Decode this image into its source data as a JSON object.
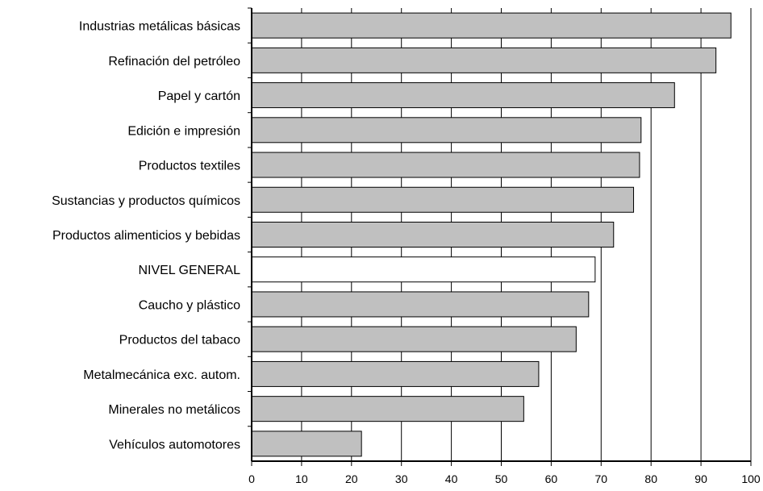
{
  "chart_data": {
    "type": "bar",
    "orientation": "horizontal",
    "title": "",
    "xlabel": "",
    "ylabel": "",
    "xlim": [
      0,
      100
    ],
    "xticks": [
      0,
      10,
      20,
      30,
      40,
      50,
      60,
      70,
      80,
      90,
      100
    ],
    "grid": "vertical",
    "categories": [
      "Industrias metálicas básicas",
      "Refinación del petróleo",
      "Papel y cartón",
      "Edición e impresión",
      "Productos textiles",
      "Sustancias y productos químicos",
      "Productos alimenticios y bebidas",
      "NIVEL  GENERAL",
      "Caucho y plástico",
      "Productos del tabaco",
      "Metalmecánica exc. autom.",
      "Minerales no metálicos",
      "Vehículos automotores"
    ],
    "values": [
      96,
      93,
      84.7,
      78,
      77.7,
      76.5,
      72.5,
      68.8,
      67.5,
      65,
      57.5,
      54.5,
      22
    ],
    "colors": {
      "bar": "#c0c0c0",
      "highlight_bar": "#ffffff",
      "highlight_category": "NIVEL  GENERAL",
      "edge": "#000000",
      "grid": "#000000"
    }
  }
}
